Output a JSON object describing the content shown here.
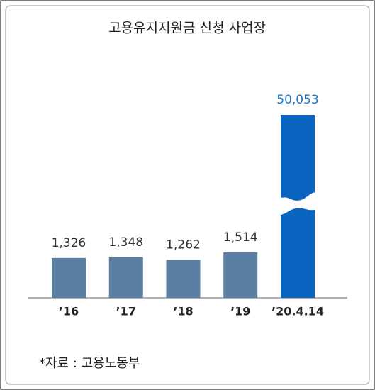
{
  "chart_data": {
    "type": "bar",
    "title": "고용유지지원금 신청 사업장",
    "categories": [
      "’16",
      "’17",
      "’18",
      "’19",
      "’20.4.14"
    ],
    "values": [
      1326,
      1348,
      1262,
      1514,
      50053
    ],
    "value_labels": [
      "1,326",
      "1,348",
      "1,262",
      "1,514",
      "50,053"
    ],
    "colors": [
      "#5a7fa3",
      "#5a7fa3",
      "#5a7fa3",
      "#5a7fa3",
      "#0a64c0"
    ],
    "label_colors": [
      "#333333",
      "#333333",
      "#333333",
      "#333333",
      "#1a78c8"
    ],
    "broken_axis": true,
    "source": "*자료 : 고용노동부"
  }
}
